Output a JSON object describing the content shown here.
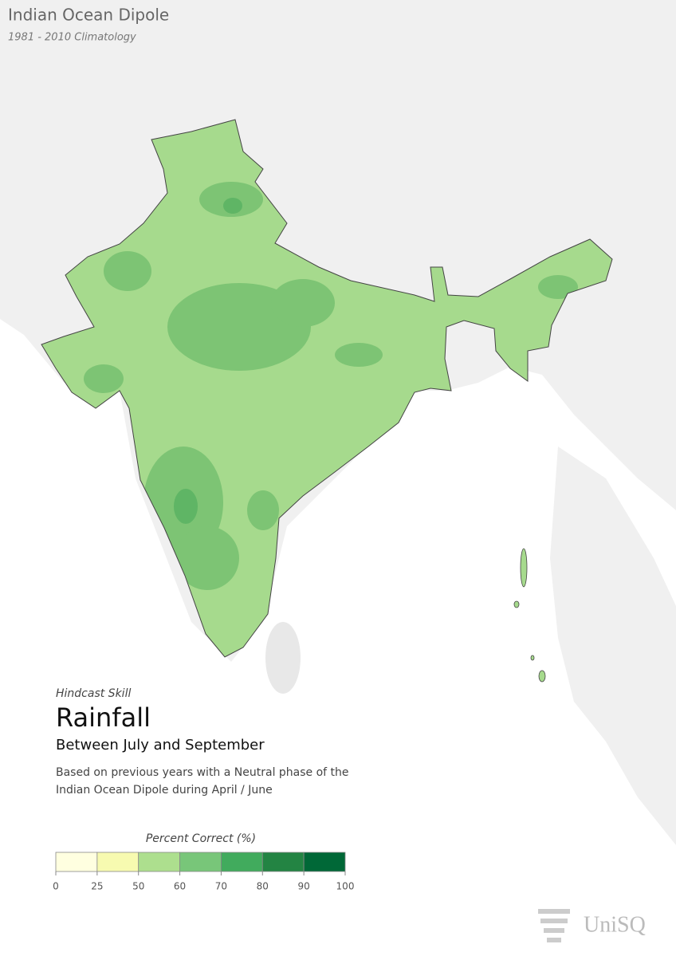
{
  "header": {
    "title": "Indian Ocean Dipole",
    "subtitle": "1981 - 2010 Climatology"
  },
  "panel": {
    "kicker": "Hindcast Skill",
    "variable": "Rainfall",
    "period": "Between July and September",
    "description": [
      "Based on previous years with a Neutral phase of the",
      "Indian Ocean Dipole during April / June"
    ]
  },
  "legend": {
    "title": "Percent Correct (%)",
    "ticks": [
      0,
      25,
      50,
      60,
      70,
      80,
      90,
      100
    ],
    "colors": [
      "#ffffe0",
      "#f7fab0",
      "#addf8e",
      "#78c679",
      "#41ab5d",
      "#238443",
      "#006837"
    ]
  },
  "logo": {
    "text": "UniSQ"
  }
}
